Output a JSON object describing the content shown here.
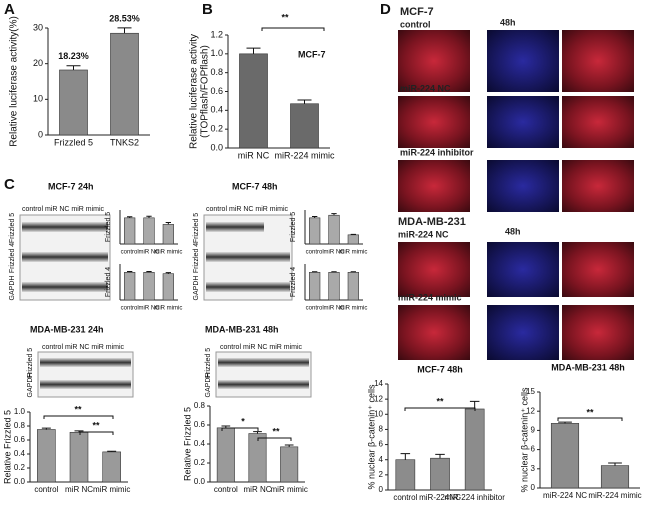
{
  "chart_data": [
    {
      "type": "bar",
      "ylabel": "Relative luciferase activity(%)",
      "categories": [
        "Frizzled 5",
        "TNKS2"
      ],
      "values": [
        18.23,
        28.53
      ],
      "value_labels": [
        "18.23%",
        "28.53%"
      ],
      "errors": [
        1.2,
        1.5
      ],
      "color": "#8a8a8a",
      "ylim": [
        0,
        30
      ],
      "yticks": [
        0,
        10,
        20,
        30
      ]
    },
    {
      "type": "bar",
      "ylabel": [
        "Relative luciferase activity",
        "(TOPflash/FOPflash)"
      ],
      "categories": [
        "miR NC",
        "miR-224 mimic"
      ],
      "values": [
        1.0,
        0.47
      ],
      "errors": [
        0.06,
        0.04
      ],
      "color": "#6a6a6a",
      "ylim": [
        0,
        1.2
      ],
      "yticks": [
        {
          "value": 0,
          "label": "0.0"
        },
        0.2,
        0.4,
        0.6,
        0.8,
        {
          "value": 1,
          "label": "1.0"
        },
        1.2
      ],
      "annotations": [
        "MCF-7",
        "**"
      ]
    },
    {
      "type": "bar",
      "ylabel": "Frizzled 5",
      "categories": [
        "control",
        "miR NC",
        "miR mimic"
      ],
      "values": [
        1.0,
        1.0,
        0.75
      ],
      "errors": [
        0.04,
        0.06,
        0.07
      ],
      "color": "#a9a9a9",
      "ylim": [
        0,
        1.3
      ]
    },
    {
      "type": "bar",
      "ylabel": "Frizzled 4",
      "categories": [
        "control",
        "miR NC",
        "miR mimic"
      ],
      "values": [
        1.0,
        1.0,
        0.95
      ],
      "errors": [
        0.03,
        0.03,
        0.04
      ],
      "color": "#a9a9a9",
      "ylim": [
        0,
        1.3
      ]
    },
    {
      "type": "bar",
      "ylabel": "Frizzled 5",
      "categories": [
        "control",
        "miR NC",
        "miR mimic"
      ],
      "values": [
        1.0,
        1.1,
        0.35
      ],
      "errors": [
        0.05,
        0.06,
        0.02
      ],
      "color": "#a9a9a9",
      "ylim": [
        0,
        1.3
      ]
    },
    {
      "type": "bar",
      "ylabel": "Frizzled 4",
      "categories": [
        "control",
        "miR NC",
        "miR mimic"
      ],
      "values": [
        1.0,
        1.0,
        1.0
      ],
      "errors": [
        0.02,
        0.02,
        0.02
      ],
      "color": "#a9a9a9",
      "ylim": [
        0,
        1.3
      ]
    },
    {
      "type": "bar",
      "ylabel": "Relative Frizzled 5",
      "categories": [
        "control",
        "miR NC",
        "miR mimic"
      ],
      "values": [
        0.75,
        0.71,
        0.43
      ],
      "errors": [
        0.02,
        0.02,
        0.01
      ],
      "color": "#9a9a9a",
      "ylim": [
        0,
        1.0
      ],
      "yticks": [
        {
          "value": 0,
          "label": "0.0"
        },
        0.2,
        0.4,
        0.6,
        0.8,
        {
          "value": 1,
          "label": "1.0"
        }
      ],
      "annotations": [
        "**",
        "**"
      ]
    },
    {
      "type": "bar",
      "ylabel": "Relative Frizzled 5",
      "categories": [
        "control",
        "miR NC",
        "miR mimic"
      ],
      "values": [
        0.57,
        0.51,
        0.37
      ],
      "errors": [
        0.02,
        0.02,
        0.02
      ],
      "color": "#9a9a9a",
      "ylim": [
        0,
        0.8
      ],
      "yticks": [
        {
          "value": 0,
          "label": "0.0"
        },
        0.2,
        0.4,
        0.6,
        0.8
      ],
      "annotations": [
        "*",
        "**"
      ]
    },
    {
      "type": "bar",
      "title": "MCF-7   48h",
      "ylabel": "% nuclear β-catenin⁺ cells",
      "categories": [
        "control",
        "miR-224NC",
        "miR-224 inhibitor"
      ],
      "values": [
        4.0,
        4.2,
        10.7
      ],
      "errors": [
        0.8,
        0.5,
        1.0
      ],
      "color": "#8c8c8c",
      "ylim": [
        0,
        14
      ],
      "yticks": [
        0,
        2,
        4,
        6,
        8,
        10,
        12,
        14
      ],
      "annotations": [
        "**"
      ]
    },
    {
      "type": "bar",
      "title": "MDA-MB-231   48h",
      "ylabel": "% nuclear β-catenin⁺ cells",
      "categories": [
        "miR-224 NC",
        "miR-224 mimic"
      ],
      "values": [
        10.1,
        3.5
      ],
      "errors": [
        0.2,
        0.4
      ],
      "color": "#8c8c8c",
      "ylim": [
        0,
        15
      ],
      "yticks": [
        0,
        3,
        6,
        9,
        12,
        15
      ],
      "annotations": [
        "**"
      ]
    }
  ],
  "panels": {
    "letters": [
      "A",
      "B",
      "C",
      "D"
    ],
    "blots": [
      {
        "title": "MCF-7  24h",
        "lanes": "control miR NC miR mimic",
        "rows": [
          "Frizzled 5",
          "Frizzled 4",
          "GAPDH"
        ]
      },
      {
        "title": "MCF-7  48h",
        "lanes": "control miR NC miR mimic",
        "rows": [
          "Frizzled 5",
          "Frizzled 4",
          "GAPDH"
        ]
      },
      {
        "title": "MDA-MB-231  24h",
        "lanes": "control miR NC miR mimic",
        "rows": [
          "Frizzled 5",
          "GAPDH"
        ]
      },
      {
        "title": "MDA-MB-231  48h",
        "lanes": "control miR NC miR mimic",
        "rows": [
          "Frizzled 5",
          "GAPDH"
        ]
      }
    ],
    "images": [
      "MCF-7",
      "control",
      "48h",
      "miR-224 NC",
      "miR-224 inhibitor",
      "MDA-MB-231",
      "miR-224 NC",
      "48h",
      "miR-224 mimic"
    ]
  }
}
